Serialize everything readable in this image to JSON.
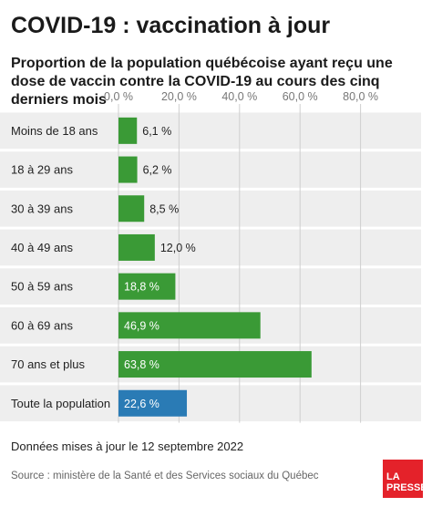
{
  "title": "COVID-19 : vaccination à jour",
  "subtitle": "Proportion de la population québécoise ayant reçu une dose de vaccin contre la COVID-19 au cours des cinq derniers mois",
  "note": "Données mises à jour le 12 septembre 2022",
  "source": "Source : ministère de la Santé et des Services sociaux du Québec",
  "logo": {
    "line1": "LA",
    "line2": "PRESSE"
  },
  "colors": {
    "bar": "#3a9a36",
    "highlight": "#2a7bb5",
    "track": "#eeeeee"
  },
  "chart_data": {
    "type": "bar",
    "orientation": "horizontal",
    "categories": [
      "Moins de 18 ans",
      "18 à 29 ans",
      "30 à 39 ans",
      "40 à 49 ans",
      "50 à 59 ans",
      "60 à 69 ans",
      "70 ans et plus",
      "Toute la population"
    ],
    "values": [
      6.1,
      6.2,
      8.5,
      12.0,
      18.8,
      46.9,
      63.8,
      22.6
    ],
    "value_labels": [
      "6,1 %",
      "6,2 %",
      "8,5 %",
      "12,0 %",
      "18,8 %",
      "46,9 %",
      "63,8 %",
      "22,6 %"
    ],
    "highlight_category": "Toute la population",
    "xlim": [
      0,
      100
    ],
    "xticks": [
      0,
      20,
      40,
      60,
      80
    ],
    "xtick_labels": [
      "0,0 %",
      "20,0 %",
      "40,0 %",
      "60,0 %",
      "80,0 %"
    ],
    "xlabel": "",
    "ylabel": "",
    "grid": true
  }
}
